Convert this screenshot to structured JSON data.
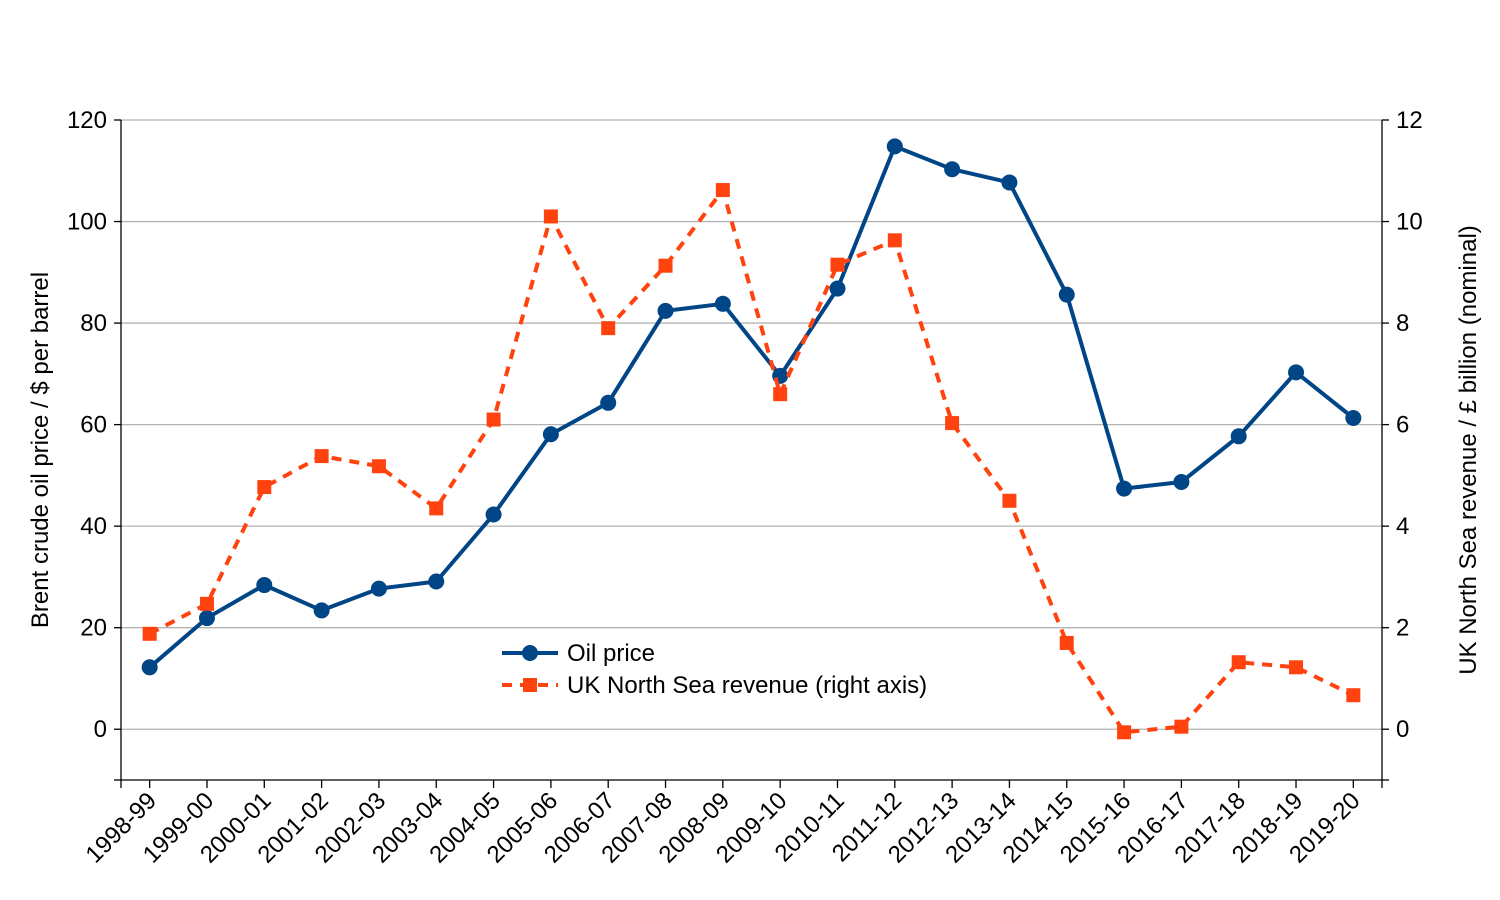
{
  "chart_data": {
    "type": "line",
    "categories": [
      "1998-99",
      "1999-00",
      "2000-01",
      "2001-02",
      "2002-03",
      "2003-04",
      "2004-05",
      "2005-06",
      "2006-07",
      "2007-08",
      "2008-09",
      "2009-10",
      "2010-11",
      "2011-12",
      "2012-13",
      "2013-14",
      "2014-15",
      "2015-16",
      "2016-17",
      "2017-18",
      "2018-19",
      "2019-20"
    ],
    "series": [
      {
        "name": "Oil price",
        "axis": "left",
        "color": "#004586",
        "marker": "circle",
        "line_style": "solid",
        "values": [
          12.2,
          21.9,
          28.4,
          23.4,
          27.7,
          29.1,
          42.3,
          58.1,
          64.3,
          82.4,
          83.8,
          69.6,
          86.8,
          114.8,
          110.3,
          107.7,
          85.6,
          47.4,
          48.7,
          57.7,
          70.3,
          61.3
        ]
      },
      {
        "name": "UK North Sea revenue (right axis)",
        "axis": "right",
        "color": "#ff420e",
        "marker": "square",
        "line_style": "dashed",
        "values": [
          1.88,
          2.47,
          4.77,
          5.38,
          5.18,
          4.35,
          6.1,
          10.1,
          7.9,
          9.13,
          10.62,
          6.6,
          9.15,
          9.63,
          6.03,
          4.5,
          1.7,
          -0.06,
          0.05,
          1.32,
          1.22,
          0.67
        ]
      }
    ],
    "ylabel": "Brent crude oil price / $ per barrel",
    "ylabel_right": "UK North Sea revenue / £ billion (nominal)",
    "ylim": [
      -10,
      120
    ],
    "ylim_right": [
      -1,
      12
    ],
    "yticks": [
      "0",
      "20",
      "40",
      "60",
      "80",
      "100",
      "120"
    ],
    "yticks_right": [
      "0",
      "2",
      "4",
      "6",
      "8",
      "10",
      "12"
    ],
    "grid": true,
    "legend_position": "center-bottom"
  }
}
